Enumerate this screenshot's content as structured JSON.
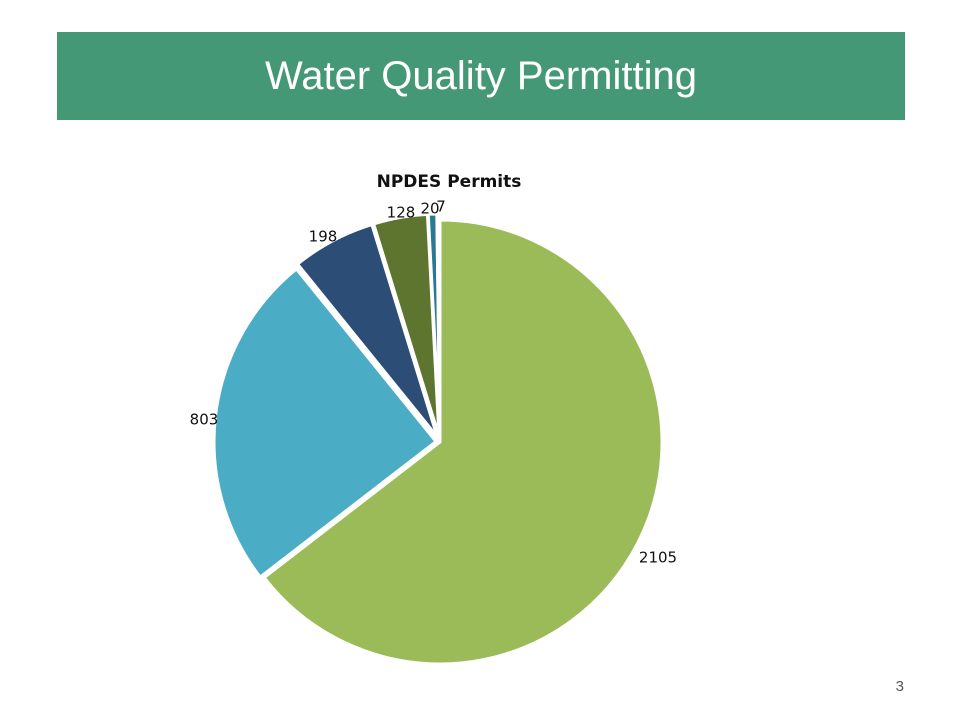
{
  "slide": {
    "title": "Water Quality Permitting",
    "page_number": "3"
  },
  "chart_data": {
    "type": "pie",
    "title": "NPDES Permits",
    "values": [
      2105,
      803,
      198,
      128,
      20,
      7
    ],
    "data_labels": [
      "2105",
      "803",
      "198",
      "128",
      "20",
      "7"
    ],
    "colors": [
      "#9BBB59",
      "#4BACC6",
      "#2C4D75",
      "#5E7530",
      "#2A7891",
      "#1F497D"
    ],
    "start": "12 o'clock",
    "direction": "clockwise",
    "exploded": true
  }
}
